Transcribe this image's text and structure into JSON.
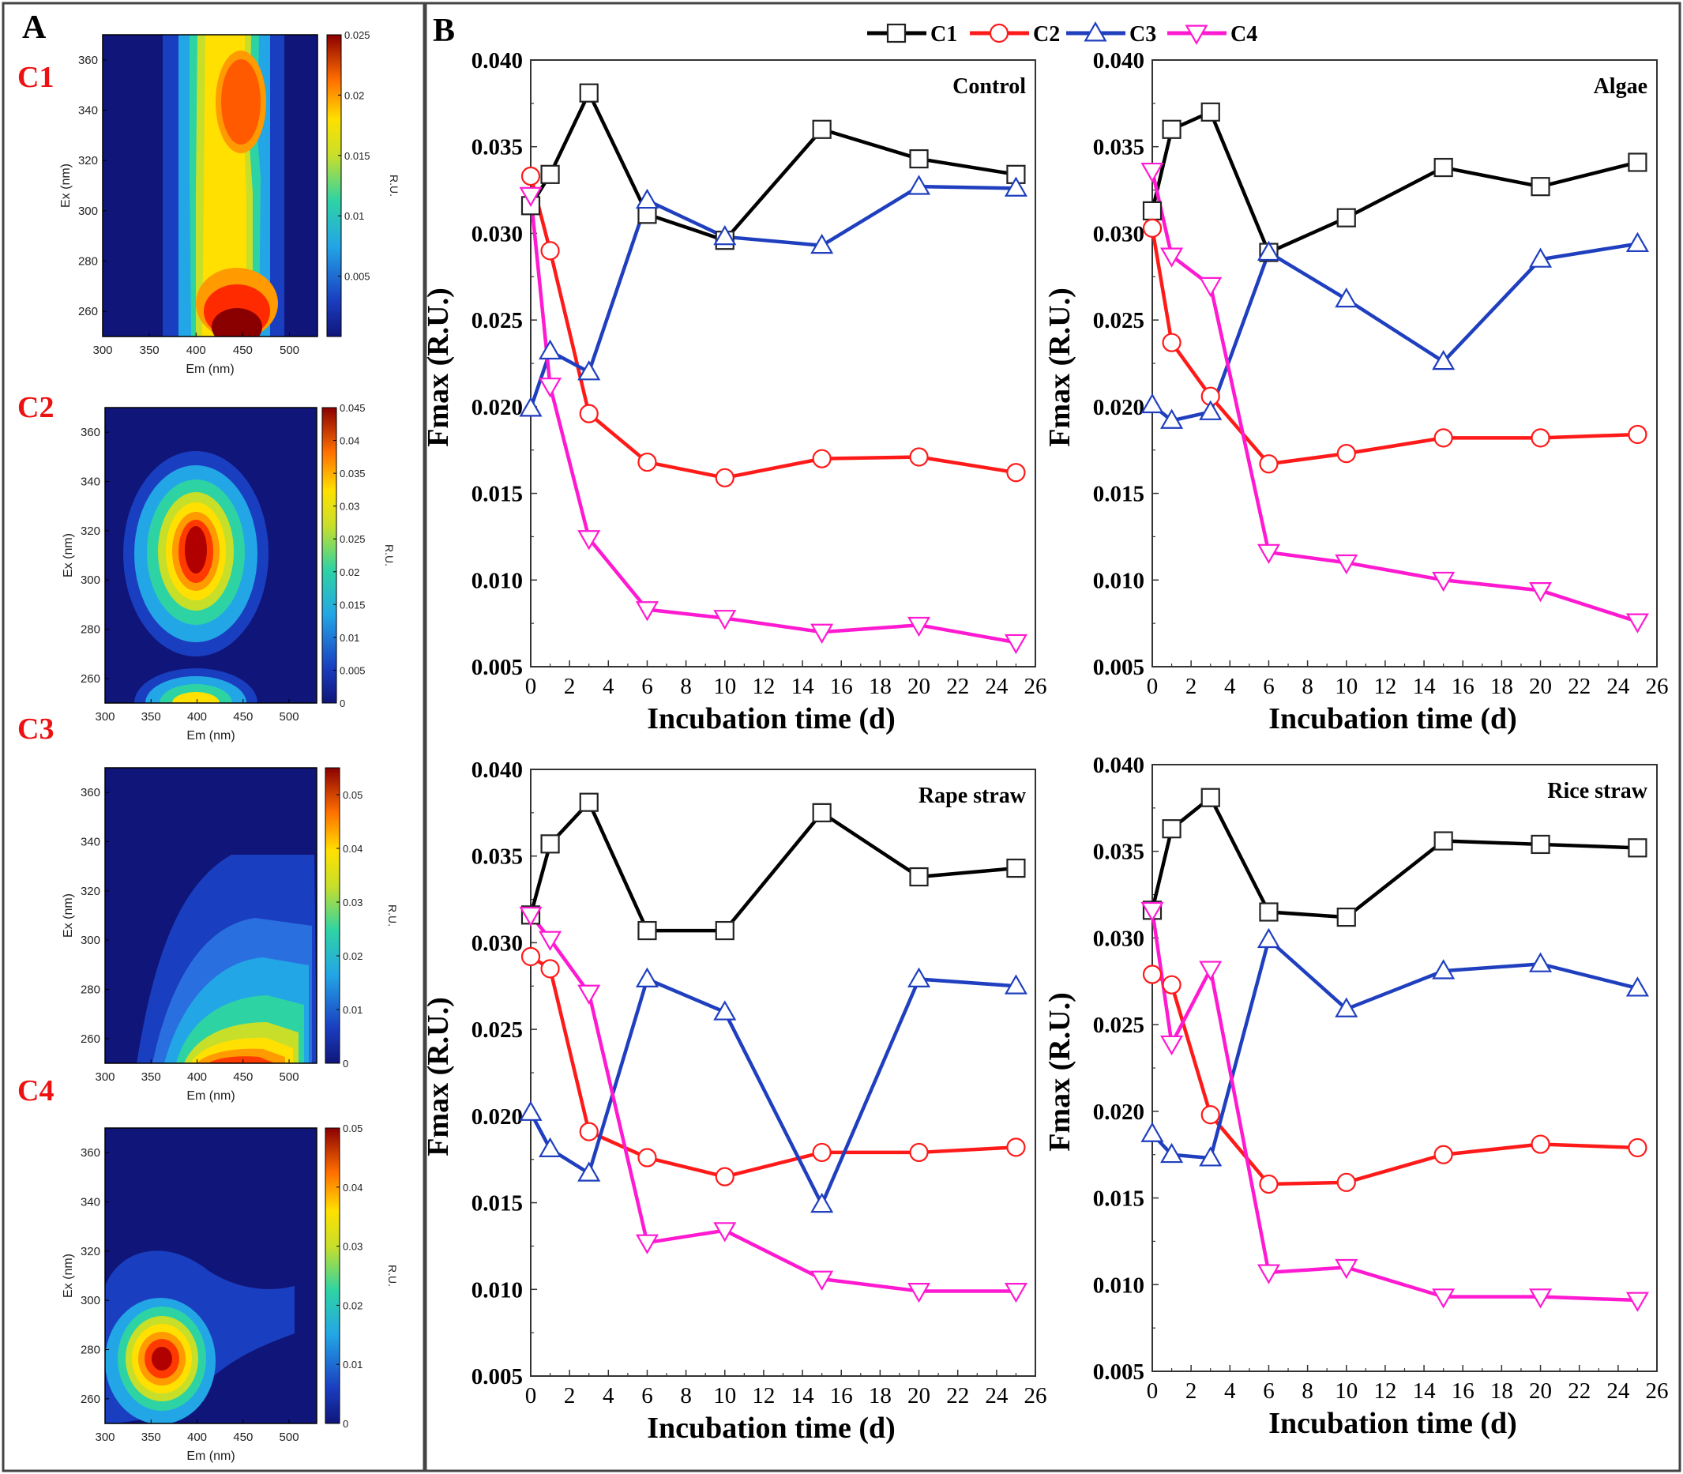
{
  "panel_a_label": "A",
  "panel_b_label": "B",
  "colors": {
    "C1": "#000000",
    "C2": "#ff1a1a",
    "C3": "#1f3fbf",
    "C4": "#ff1ad1"
  },
  "chart_data": [
    {
      "type": "heatmap",
      "component": "C1",
      "xlabel": "Em (nm)",
      "ylabel": "Ex (nm)",
      "xticks": [
        300,
        350,
        400,
        450,
        500
      ],
      "yticks": [
        260,
        280,
        300,
        320,
        340,
        360
      ],
      "xlim": [
        300,
        530
      ],
      "ylim": [
        250,
        370
      ],
      "colorbar": {
        "label": "R.U.",
        "ticks": [
          "0.005",
          "0.01",
          "0.015",
          "0.02",
          "0.025"
        ],
        "max": 0.025
      },
      "peaks": [
        {
          "em": 450,
          "ex": 345,
          "value": 0.02
        },
        {
          "em": 450,
          "ex": 258,
          "value": 0.025
        }
      ]
    },
    {
      "type": "heatmap",
      "component": "C2",
      "xlabel": "Em (nm)",
      "ylabel": "Ex (nm)",
      "xticks": [
        300,
        350,
        400,
        450,
        500
      ],
      "yticks": [
        260,
        280,
        300,
        320,
        340,
        360
      ],
      "xlim": [
        300,
        530
      ],
      "ylim": [
        250,
        370
      ],
      "colorbar": {
        "label": "R.U.",
        "ticks": [
          "0",
          "0.005",
          "0.01",
          "0.015",
          "0.02",
          "0.025",
          "0.03",
          "0.035",
          "0.04",
          "0.045"
        ],
        "max": 0.045
      },
      "peaks": [
        {
          "em": 400,
          "ex": 315,
          "value": 0.045
        }
      ]
    },
    {
      "type": "heatmap",
      "component": "C3",
      "xlabel": "Em (nm)",
      "ylabel": "Ex (nm)",
      "xticks": [
        300,
        350,
        400,
        450,
        500
      ],
      "yticks": [
        260,
        280,
        300,
        320,
        340,
        360
      ],
      "xlim": [
        300,
        530
      ],
      "ylim": [
        250,
        370
      ],
      "colorbar": {
        "label": "R.U.",
        "ticks": [
          "0",
          "0.01",
          "0.02",
          "0.03",
          "0.04",
          "0.05"
        ],
        "max": 0.055
      },
      "peaks": [
        {
          "em": 440,
          "ex": 252,
          "value": 0.05
        }
      ]
    },
    {
      "type": "heatmap",
      "component": "C4",
      "xlabel": "Em (nm)",
      "ylabel": "Ex (nm)",
      "xticks": [
        300,
        350,
        400,
        450,
        500
      ],
      "yticks": [
        260,
        280,
        300,
        320,
        340,
        360
      ],
      "xlim": [
        300,
        530
      ],
      "ylim": [
        250,
        370
      ],
      "colorbar": {
        "label": "R.U.",
        "ticks": [
          "0",
          "0.01",
          "0.02",
          "0.03",
          "0.04",
          "0.05"
        ],
        "max": 0.05
      },
      "peaks": [
        {
          "em": 362,
          "ex": 275,
          "value": 0.05
        }
      ]
    },
    {
      "type": "line",
      "title": "Control",
      "xlabel": "Incubation time (d)",
      "ylabel": "Fmax (R.U.)",
      "xlim": [
        0,
        26
      ],
      "ylim": [
        0.005,
        0.04
      ],
      "xticks": [
        0,
        2,
        4,
        6,
        8,
        10,
        12,
        14,
        16,
        18,
        20,
        22,
        24,
        26
      ],
      "yticks": [
        "0.005",
        "0.010",
        "0.015",
        "0.020",
        "0.025",
        "0.030",
        "0.035",
        "0.040"
      ],
      "x": [
        0,
        1,
        3,
        6,
        10,
        15,
        20,
        25
      ],
      "series": [
        {
          "name": "C1",
          "values": [
            0.0316,
            0.0334,
            0.0381,
            0.0311,
            0.0296,
            0.036,
            0.0343,
            0.0334
          ]
        },
        {
          "name": "C2",
          "values": [
            0.0333,
            0.029,
            0.0196,
            0.0168,
            0.0159,
            0.017,
            0.0171,
            0.0162
          ]
        },
        {
          "name": "C3",
          "values": [
            0.0199,
            0.0232,
            0.022,
            0.0319,
            0.0298,
            0.0293,
            0.0327,
            0.0326
          ]
        },
        {
          "name": "C4",
          "values": [
            0.0322,
            0.0212,
            0.0124,
            0.0083,
            0.0078,
            0.007,
            0.0074,
            0.0064
          ]
        }
      ]
    },
    {
      "type": "line",
      "title": "Algae",
      "xlabel": "Incubation time (d)",
      "ylabel": "Fmax (R.U.)",
      "xlim": [
        0,
        26
      ],
      "ylim": [
        0.005,
        0.04
      ],
      "xticks": [
        0,
        2,
        4,
        6,
        8,
        10,
        12,
        14,
        16,
        18,
        20,
        22,
        24,
        26
      ],
      "yticks": [
        "0.005",
        "0.010",
        "0.015",
        "0.020",
        "0.025",
        "0.030",
        "0.035",
        "0.040"
      ],
      "x": [
        0,
        1,
        3,
        6,
        10,
        15,
        20,
        25
      ],
      "series": [
        {
          "name": "C1",
          "values": [
            0.0313,
            0.036,
            0.037,
            0.0289,
            0.0309,
            0.0338,
            0.0327,
            0.0341
          ]
        },
        {
          "name": "C2",
          "values": [
            0.0303,
            0.0237,
            0.0206,
            0.0167,
            0.0173,
            0.0182,
            0.0182,
            0.0184
          ]
        },
        {
          "name": "C3",
          "values": [
            0.0201,
            0.0192,
            0.0197,
            0.0289,
            0.0262,
            0.0226,
            0.0285,
            0.0294
          ]
        },
        {
          "name": "C4",
          "values": [
            0.0336,
            0.0287,
            0.027,
            0.0116,
            0.011,
            0.01,
            0.0094,
            0.0076
          ]
        }
      ]
    },
    {
      "type": "line",
      "title": "Rape straw",
      "xlabel": "Incubation time (d)",
      "ylabel": "Fmax (R.U.)",
      "xlim": [
        0,
        26
      ],
      "ylim": [
        0.005,
        0.04
      ],
      "xticks": [
        0,
        2,
        4,
        6,
        8,
        10,
        12,
        14,
        16,
        18,
        20,
        22,
        24,
        26
      ],
      "yticks": [
        "0.005",
        "0.010",
        "0.015",
        "0.020",
        "0.025",
        "0.030",
        "0.035",
        "0.040"
      ],
      "x": [
        0,
        1,
        3,
        6,
        10,
        15,
        20,
        25
      ],
      "series": [
        {
          "name": "C1",
          "values": [
            0.0316,
            0.0357,
            0.0381,
            0.0307,
            0.0307,
            0.0375,
            0.0338,
            0.0343
          ]
        },
        {
          "name": "C2",
          "values": [
            0.0292,
            0.0285,
            0.0191,
            0.0176,
            0.0165,
            0.0179,
            0.0179,
            0.0182
          ]
        },
        {
          "name": "C3",
          "values": [
            0.0202,
            0.0181,
            0.0167,
            0.0279,
            0.026,
            0.0149,
            0.0279,
            0.0275
          ]
        },
        {
          "name": "C4",
          "values": [
            0.0316,
            0.0302,
            0.0271,
            0.0127,
            0.0134,
            0.0106,
            0.0099,
            0.0099
          ]
        }
      ]
    },
    {
      "type": "line",
      "title": "Rice straw",
      "xlabel": "Incubation time (d)",
      "ylabel": "Fmax (R.U.)",
      "xlim": [
        0,
        26
      ],
      "ylim": [
        0.005,
        0.04
      ],
      "xticks": [
        0,
        2,
        4,
        6,
        8,
        10,
        12,
        14,
        16,
        18,
        20,
        22,
        24,
        26
      ],
      "yticks": [
        "0.005",
        "0.010",
        "0.015",
        "0.020",
        "0.025",
        "0.030",
        "0.035",
        "0.040"
      ],
      "x": [
        0,
        1,
        3,
        6,
        10,
        15,
        20,
        25
      ],
      "series": [
        {
          "name": "C1",
          "values": [
            0.0316,
            0.0363,
            0.0381,
            0.0315,
            0.0312,
            0.0356,
            0.0354,
            0.0352
          ]
        },
        {
          "name": "C2",
          "values": [
            0.0279,
            0.0273,
            0.0198,
            0.0158,
            0.0159,
            0.0175,
            0.0181,
            0.0179
          ]
        },
        {
          "name": "C3",
          "values": [
            0.0187,
            0.0175,
            0.0173,
            0.0299,
            0.0259,
            0.0281,
            0.0285,
            0.0271
          ]
        },
        {
          "name": "C4",
          "values": [
            0.0316,
            0.0239,
            0.0282,
            0.0107,
            0.011,
            0.0093,
            0.0093,
            0.0091
          ]
        }
      ]
    }
  ]
}
